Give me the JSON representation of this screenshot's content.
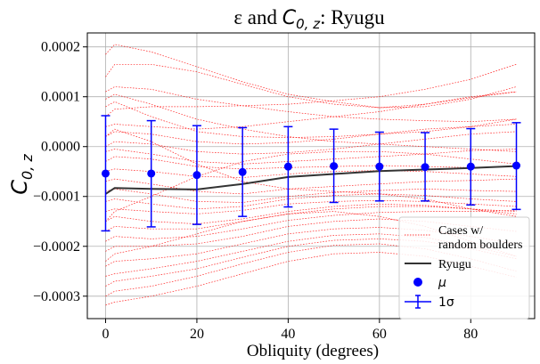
{
  "chart_data": {
    "type": "line",
    "title_prefix": "ε and ",
    "title_sym": "C",
    "title_sub": "0, z",
    "title_suffix": ": Ryugu",
    "xlabel": "Obliquity (degrees)",
    "ylabel_sym": "C",
    "ylabel_sub": "0, z",
    "xlim": [
      -4,
      94
    ],
    "ylim": [
      -0.000345,
      0.000228
    ],
    "x_ticks": [
      0,
      20,
      40,
      60,
      80
    ],
    "x_tick_labels": [
      "0",
      "20",
      "40",
      "60",
      "80"
    ],
    "y_ticks": [
      0.0002,
      0.0001,
      0.0,
      -0.0001,
      -0.0002,
      -0.0003
    ],
    "y_tick_labels": [
      "0.0002",
      "0.0001",
      "0.0000",
      "−0.0001",
      "−0.0002",
      "−0.0003"
    ],
    "grid": true,
    "legend_placement": "lower-right",
    "colors": {
      "cases": "#ff0000",
      "ryugu": "#333333",
      "mu": "#0000ff",
      "sigma": "#0000ff"
    },
    "legend": {
      "cases": [
        "Cases w/",
        "random boulders"
      ],
      "ryugu": "Ryugu",
      "mu": "μ",
      "sigma": "1σ"
    },
    "ryugu_line": {
      "x": [
        0,
        2,
        10,
        20,
        30,
        40,
        50,
        60,
        70,
        80,
        90
      ],
      "y": [
        -9.5e-05,
        -8.3e-05,
        -8.5e-05,
        -8.6e-05,
        -7.5e-05,
        -6.1e-05,
        -5.5e-05,
        -4.9e-05,
        -4.6e-05,
        -4.3e-05,
        -3.9e-05
      ]
    },
    "mean_points": {
      "x": [
        0,
        10,
        20,
        30,
        40,
        50,
        60,
        70,
        80,
        90
      ],
      "mu": [
        -5.4e-05,
        -5.4e-05,
        -5.7e-05,
        -5.1e-05,
        -4e-05,
        -3.9e-05,
        -4e-05,
        -4.1e-05,
        -4e-05,
        -3.8e-05
      ],
      "upper": [
        6.2e-05,
        5.2e-05,
        4.2e-05,
        3.8e-05,
        4e-05,
        3.5e-05,
        2.9e-05,
        2.8e-05,
        3.6e-05,
        4.8e-05
      ],
      "lower": [
        -0.000169,
        -0.000161,
        -0.000156,
        -0.00014,
        -0.000121,
        -0.000112,
        -0.000109,
        -0.000109,
        -0.000117,
        -0.000126
      ]
    },
    "case_x": [
      0,
      2,
      10,
      20,
      30,
      40,
      50,
      60,
      70,
      80,
      90
    ],
    "case_series": [
      [
        0.00011,
        0.00012,
        0.000115,
        9.5e-05,
        8.2e-05,
        7e-05,
        6e-05,
        5.5e-05,
        5.2e-05,
        5e-05,
        5.5e-05
      ],
      [
        0.000185,
        0.000205,
        0.00019,
        0.00016,
        0.00013,
        0.000105,
        9e-05,
        7.8e-05,
        8.5e-05,
        9.8e-05,
        0.00011
      ],
      [
        0.00014,
        0.000165,
        0.000165,
        0.00015,
        0.000125,
        0.0001,
        8.5e-05,
        7.8e-05,
        8e-05,
        9.5e-05,
        0.00012
      ],
      [
        6e-05,
        7.5e-05,
        8e-05,
        8e-05,
        8.2e-05,
        8.5e-05,
        9.2e-05,
        0.0001,
        0.000115,
        0.000135,
        0.000165
      ],
      [
        4e-05,
        4.5e-05,
        4e-05,
        3.5e-05,
        4e-05,
        5e-05,
        6e-05,
        7e-05,
        8.5e-05,
        0.0001,
        0.00011
      ],
      [
        2e-05,
        3e-05,
        2.5e-05,
        1e-05,
        5e-06,
        8e-06,
        1.5e-05,
        2.5e-05,
        3.5e-05,
        4e-05,
        4.5e-05
      ],
      [
        8e-05,
        9e-05,
        6e-05,
        3e-05,
        2e-05,
        1.8e-05,
        2e-05,
        2.5e-05,
        3e-05,
        4e-05,
        5.5e-05
      ],
      [
        0.0,
        1e-05,
        5e-06,
        -1e-05,
        -1.5e-05,
        -1.2e-05,
        -5e-06,
        5e-06,
        1.5e-05,
        2.5e-05,
        3e-05
      ],
      [
        -1e-05,
        -5e-06,
        -1.5e-05,
        -3e-05,
        -3.5e-05,
        -3e-05,
        -2.5e-05,
        -2e-05,
        -1.5e-05,
        -8e-06,
        -5e-06
      ],
      [
        -3e-05,
        -2e-05,
        -2.5e-05,
        -4e-05,
        -4.5e-05,
        -4.2e-05,
        -4e-05,
        -3.8e-05,
        -4e-05,
        -4.2e-05,
        -4e-05
      ],
      [
        -5e-05,
        -4.5e-05,
        -5e-05,
        -6e-05,
        -6.2e-05,
        -5.5e-05,
        -5e-05,
        -4.8e-05,
        -5e-05,
        -5.5e-05,
        -6e-05
      ],
      [
        -7e-05,
        -6.5e-05,
        -7.5e-05,
        -9e-05,
        -9.5e-05,
        -8.5e-05,
        -8e-05,
        -7.5e-05,
        -7e-05,
        -6.8e-05,
        -6.5e-05
      ],
      [
        -9e-05,
        -8.5e-05,
        -9.5e-05,
        -0.00011,
        -0.000112,
        -0.0001,
        -9.2e-05,
        -8.8e-05,
        -8.5e-05,
        -8.8e-05,
        -9e-05
      ],
      [
        -0.00011,
        -0.000105,
        -0.000115,
        -0.000125,
        -0.00012,
        -0.000105,
        -9.8e-05,
        -9.5e-05,
        -9.8e-05,
        -0.000105,
        -0.00011
      ],
      [
        -0.00013,
        -0.000125,
        -0.00013,
        -0.000135,
        -0.000128,
        -0.000115,
        -0.00011,
        -0.000108,
        -0.00011,
        -0.000115,
        -0.00012
      ],
      [
        -0.00015,
        -0.00014,
        -0.00015,
        -0.000155,
        -0.000145,
        -0.00013,
        -0.00012,
        -0.000115,
        -0.000118,
        -0.000125,
        -0.000135
      ],
      [
        -0.00017,
        -0.00016,
        -0.000165,
        -0.000165,
        -0.00015,
        -0.000135,
        -0.000125,
        -0.00012,
        -0.00012,
        -0.000125,
        -0.00013
      ],
      [
        -0.00019,
        -0.00018,
        -0.000185,
        -0.00018,
        -0.000165,
        -0.000148,
        -0.000138,
        -0.000132,
        -0.00013,
        -0.00013,
        -0.000128
      ],
      [
        -0.00021,
        -0.0002,
        -0.0002,
        -0.000195,
        -0.00018,
        -0.00016,
        -0.00015,
        -0.000145,
        -0.00015,
        -0.00016,
        -0.00017
      ],
      [
        -0.00024,
        -0.00023,
        -0.000225,
        -0.000215,
        -0.000195,
        -0.000175,
        -0.000165,
        -0.000162,
        -0.000168,
        -0.00018,
        -0.000195
      ],
      [
        -0.00026,
        -0.000255,
        -0.000245,
        -0.00023,
        -0.00021,
        -0.00019,
        -0.000178,
        -0.000175,
        -0.000182,
        -0.0002,
        -0.00022
      ],
      [
        -0.00028,
        -0.00027,
        -0.00026,
        -0.000245,
        -0.000222,
        -0.0002,
        -0.000188,
        -0.000185,
        -0.00019,
        -0.000205,
        -0.000225
      ],
      [
        -0.0003,
        -0.00029,
        -0.00028,
        -0.00026,
        -0.000235,
        -0.000212,
        -0.000198,
        -0.000195,
        -0.000205,
        -0.000225,
        -0.00025
      ],
      [
        -0.000318,
        -0.000312,
        -0.0003,
        -0.00028,
        -0.000255,
        -0.00023,
        -0.000215,
        -0.000212,
        -0.00022,
        -0.00024,
        -0.000262
      ],
      [
        -0.00023,
        -0.000215,
        -0.0002,
        -0.000175,
        -0.00015,
        -0.000135,
        -0.00013,
        -0.00014,
        -0.00016,
        -0.00019,
        -0.00022
      ],
      [
        2e-05,
        3.5e-05,
        1e-05,
        -3.5e-05,
        -7e-05,
        -8.5e-05,
        -9e-05,
        -9.5e-05,
        -0.000105,
        -0.000125,
        -0.00014
      ],
      [
        -0.00015,
        -0.00013,
        -0.0001,
        -6e-05,
        -3e-05,
        -1.5e-05,
        -1e-05,
        -1e-05,
        -1.5e-05,
        -2.5e-05,
        -3.5e-05
      ],
      [
        9.5e-05,
        0.000105,
        8.5e-05,
        5.5e-05,
        3.5e-05,
        2e-05,
        1e-05,
        5e-06,
        0.0,
        -5e-06,
        -1e-05
      ]
    ]
  }
}
